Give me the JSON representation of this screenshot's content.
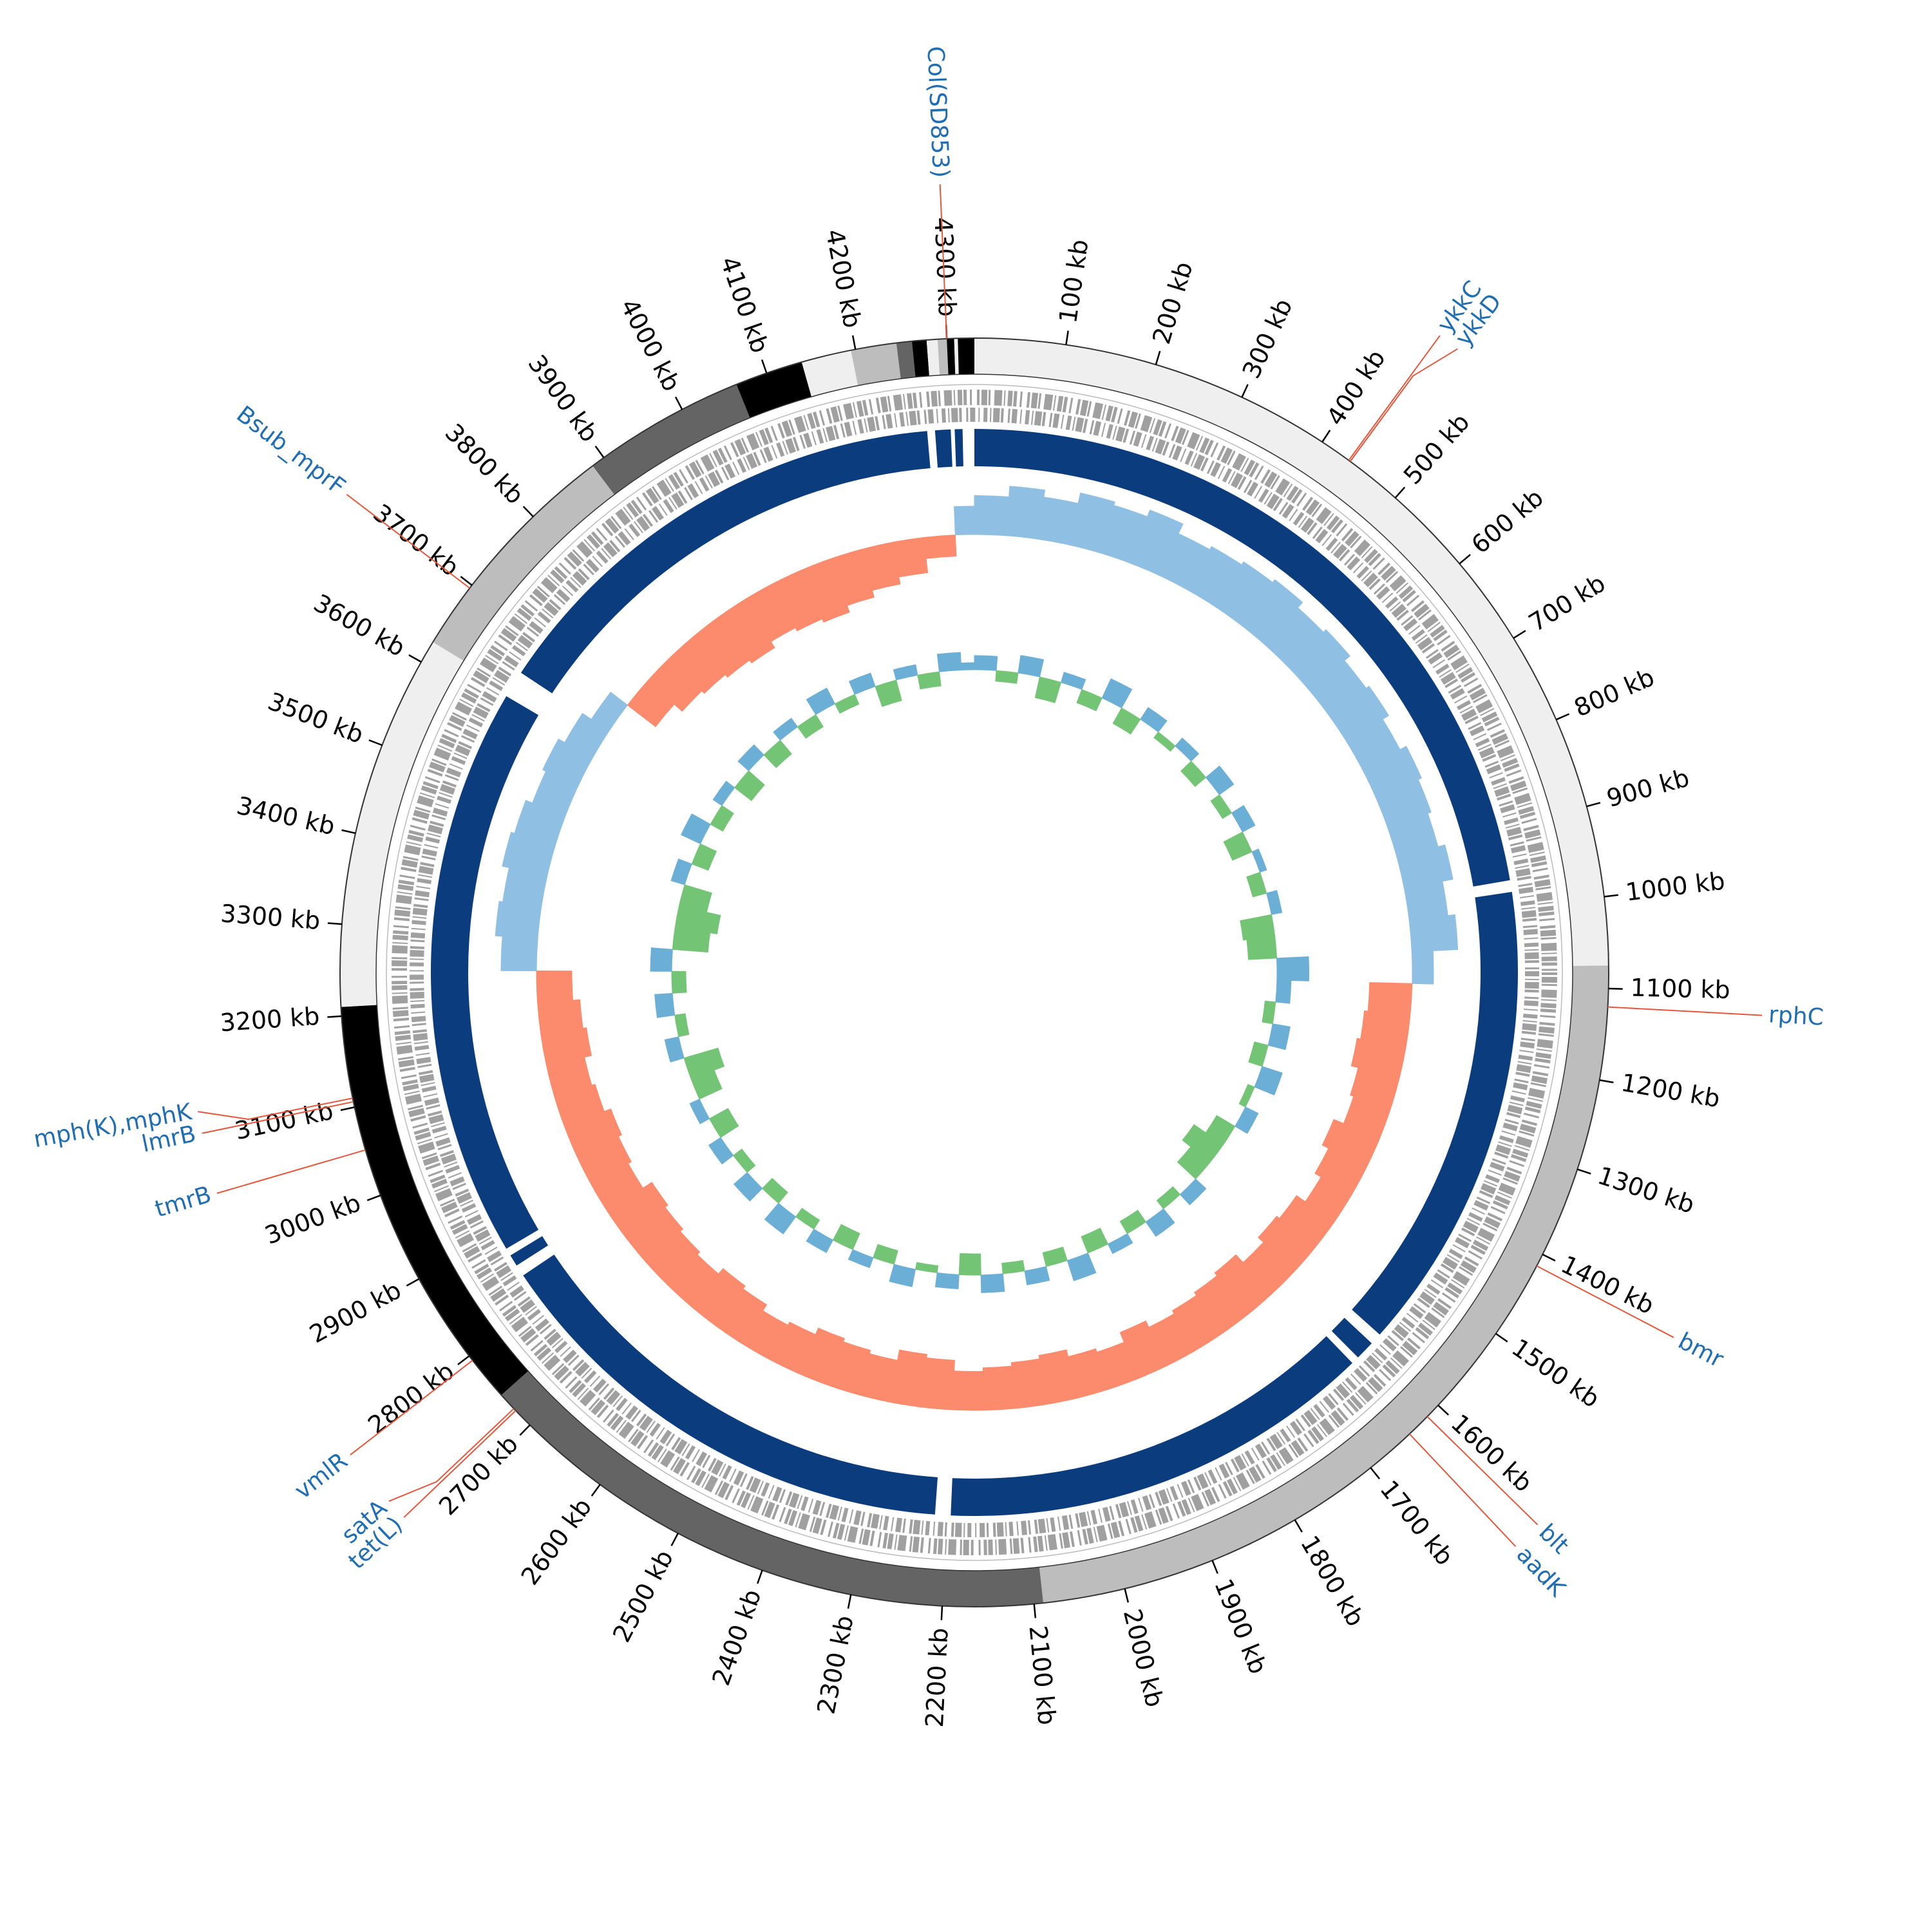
{
  "chart_data": {
    "type": "circular-genome",
    "xlim": [
      0,
      4330
    ],
    "xticks": [
      {
        "value": 100,
        "label": "100 kb"
      },
      {
        "value": 200,
        "label": "200 kb"
      },
      {
        "value": 300,
        "label": "300 kb"
      },
      {
        "value": 400,
        "label": "400 kb"
      },
      {
        "value": 500,
        "label": "500 kb"
      },
      {
        "value": 600,
        "label": "600 kb"
      },
      {
        "value": 700,
        "label": "700 kb"
      },
      {
        "value": 800,
        "label": "800 kb"
      },
      {
        "value": 900,
        "label": "900 kb"
      },
      {
        "value": 1000,
        "label": "1000 kb"
      },
      {
        "value": 1100,
        "label": "1100 kb"
      },
      {
        "value": 1200,
        "label": "1200 kb"
      },
      {
        "value": 1300,
        "label": "1300 kb"
      },
      {
        "value": 1400,
        "label": "1400 kb"
      },
      {
        "value": 1500,
        "label": "1500 kb"
      },
      {
        "value": 1600,
        "label": "1600 kb"
      },
      {
        "value": 1700,
        "label": "1700 kb"
      },
      {
        "value": 1800,
        "label": "1800 kb"
      },
      {
        "value": 1900,
        "label": "1900 kb"
      },
      {
        "value": 2000,
        "label": "2000 kb"
      },
      {
        "value": 2100,
        "label": "2100 kb"
      },
      {
        "value": 2200,
        "label": "2200 kb"
      },
      {
        "value": 2300,
        "label": "2300 kb"
      },
      {
        "value": 2400,
        "label": "2400 kb"
      },
      {
        "value": 2500,
        "label": "2500 kb"
      },
      {
        "value": 2600,
        "label": "2600 kb"
      },
      {
        "value": 2700,
        "label": "2700 kb"
      },
      {
        "value": 2800,
        "label": "2800 kb"
      },
      {
        "value": 2900,
        "label": "2900 kb"
      },
      {
        "value": 3000,
        "label": "3000 kb"
      },
      {
        "value": 3100,
        "label": "3100 kb"
      },
      {
        "value": 3200,
        "label": "3200 kb"
      },
      {
        "value": 3300,
        "label": "3300 kb"
      },
      {
        "value": 3400,
        "label": "3400 kb"
      },
      {
        "value": 3500,
        "label": "3500 kb"
      },
      {
        "value": 3600,
        "label": "3600 kb"
      },
      {
        "value": 3700,
        "label": "3700 kb"
      },
      {
        "value": 3800,
        "label": "3800 kb"
      },
      {
        "value": 3900,
        "label": "3900 kb"
      },
      {
        "value": 4000,
        "label": "4000 kb"
      },
      {
        "value": 4100,
        "label": "4100 kb"
      },
      {
        "value": 4200,
        "label": "4200 kb"
      },
      {
        "value": 4300,
        "label": "4300 kb"
      }
    ],
    "contigs": [
      {
        "start": 0,
        "end": 1075,
        "color": "#efefef"
      },
      {
        "start": 1075,
        "end": 2090,
        "color": "#bdbdbd"
      },
      {
        "start": 2090,
        "end": 2745,
        "color": "#646464"
      },
      {
        "start": 2745,
        "end": 3210,
        "color": "#000000"
      },
      {
        "start": 3210,
        "end": 3625,
        "color": "#efefef"
      },
      {
        "start": 3625,
        "end": 3885,
        "color": "#bdbdbd"
      },
      {
        "start": 3885,
        "end": 4065,
        "color": "#646464"
      },
      {
        "start": 4065,
        "end": 4140,
        "color": "#000000"
      },
      {
        "start": 4140,
        "end": 4195,
        "color": "#efefef"
      },
      {
        "start": 4195,
        "end": 4245,
        "color": "#bdbdbd"
      },
      {
        "start": 4245,
        "end": 4262,
        "color": "#646464"
      },
      {
        "start": 4262,
        "end": 4278,
        "color": "#000000"
      },
      {
        "start": 4278,
        "end": 4290,
        "color": "#efefef"
      },
      {
        "start": 4290,
        "end": 4300,
        "color": "#bdbdbd"
      },
      {
        "start": 4300,
        "end": 4308,
        "color": "#000000"
      },
      {
        "start": 4308,
        "end": 4312,
        "color": "#efefef"
      },
      {
        "start": 4312,
        "end": 4330,
        "color": "#000000"
      }
    ],
    "hits": {
      "color": "#0b3d7e",
      "segments": [
        [
          0,
          965
        ],
        [
          980,
          1585
        ],
        [
          1600,
          1625
        ],
        [
          1635,
          2195
        ],
        [
          2215,
          2840
        ],
        [
          2855,
          2870
        ],
        [
          2880,
          3615
        ],
        [
          3650,
          4270
        ],
        [
          4280,
          4300
        ],
        [
          4305,
          4315
        ]
      ]
    },
    "gc_skew": {
      "bin_kb": 50,
      "ylim": [
        -1,
        1
      ],
      "pos_color": "#8fc0e3",
      "neg_color": "#fb8b6c",
      "values": [
        0.55,
        0.7,
        0.6,
        0.75,
        0.7,
        0.8,
        0.65,
        0.7,
        0.75,
        0.8,
        0.7,
        0.75,
        0.65,
        0.7,
        0.6,
        0.7,
        0.65,
        0.6,
        0.7,
        0.55,
        0.65,
        0.3,
        -0.6,
        -0.65,
        -0.7,
        -0.6,
        -0.55,
        -0.7,
        -0.6,
        -0.5,
        -0.65,
        -0.7,
        -0.6,
        -0.75,
        -0.7,
        -0.65,
        -0.6,
        -0.7,
        -0.55,
        -0.6,
        -0.7,
        -0.65,
        -0.6,
        -0.55,
        -0.7,
        -0.75,
        -0.6,
        -0.65,
        -0.7,
        -0.6,
        -0.55,
        -0.65,
        -0.7,
        -0.6,
        -0.65,
        -0.7,
        -0.75,
        -0.6,
        -0.65,
        -0.7,
        -0.6,
        -0.55,
        -0.65,
        -0.6,
        -0.5,
        0.5,
        0.6,
        0.55,
        0.65,
        0.6,
        0.5,
        0.55,
        0.45,
        0.3,
        -0.5,
        -0.65,
        -0.7,
        -0.75,
        -0.8,
        -0.7,
        -0.75,
        -0.8,
        -0.7,
        -0.6,
        -0.5,
        -0.3,
        0.4
      ]
    },
    "gc_content": {
      "bin_kb": 50,
      "ylim": [
        -1,
        1
      ],
      "pos_color": "#6baed6",
      "neg_color": "#74c476",
      "values": [
        0.2,
        -0.15,
        0.25,
        -0.3,
        0.15,
        -0.2,
        0.3,
        -0.25,
        0.2,
        -0.1,
        0.15,
        -0.2,
        0.25,
        -0.15,
        0.2,
        -0.3,
        0.1,
        -0.2,
        0.15,
        -0.45,
        -0.4,
        0.45,
        0.2,
        -0.15,
        0.25,
        -0.2,
        0.3,
        -0.1,
        0.2,
        -0.3,
        -0.5,
        -0.35,
        0.2,
        -0.15,
        0.25,
        -0.2,
        0.15,
        -0.25,
        0.3,
        -0.2,
        0.2,
        -0.15,
        0.25,
        -0.3,
        0.2,
        -0.1,
        0.25,
        -0.2,
        0.15,
        -0.25,
        0.2,
        -0.15,
        0.3,
        -0.2,
        0.25,
        -0.15,
        0.2,
        -0.3,
        0.15,
        -0.35,
        -0.5,
        0.2,
        -0.15,
        0.25,
        -0.2,
        0.3,
        -0.5,
        -0.6,
        -0.4,
        0.2,
        -0.25,
        0.3,
        -0.2,
        0.15,
        -0.3,
        0.2,
        -0.25,
        0.15,
        -0.2,
        0.25,
        -0.15,
        0.2,
        -0.3,
        0.15,
        -0.2,
        0.25,
        0.1
      ]
    },
    "annotation_color": "#1f6eb4",
    "leader_color": "#e8553a",
    "annotations": [
      {
        "position": 435,
        "label": "ykkC"
      },
      {
        "position": 437,
        "label": "ykkD"
      },
      {
        "position": 1120,
        "label": "rphC"
      },
      {
        "position": 1414,
        "label": "bmr"
      },
      {
        "position": 1617,
        "label": "blt"
      },
      {
        "position": 1644,
        "label": "aadK"
      },
      {
        "position": 2722,
        "label": "tet(L)"
      },
      {
        "position": 2725,
        "label": "satA"
      },
      {
        "position": 2794,
        "label": "vmlR"
      },
      {
        "position": 3052,
        "label": "tmrB"
      },
      {
        "position": 3106,
        "label": "lmrB"
      },
      {
        "position": 3110,
        "label": "mph(K),mphK"
      },
      {
        "position": 3696,
        "label": "Bsub_mprF"
      },
      {
        "position": 4300,
        "label": "Col(SD853)"
      }
    ]
  }
}
